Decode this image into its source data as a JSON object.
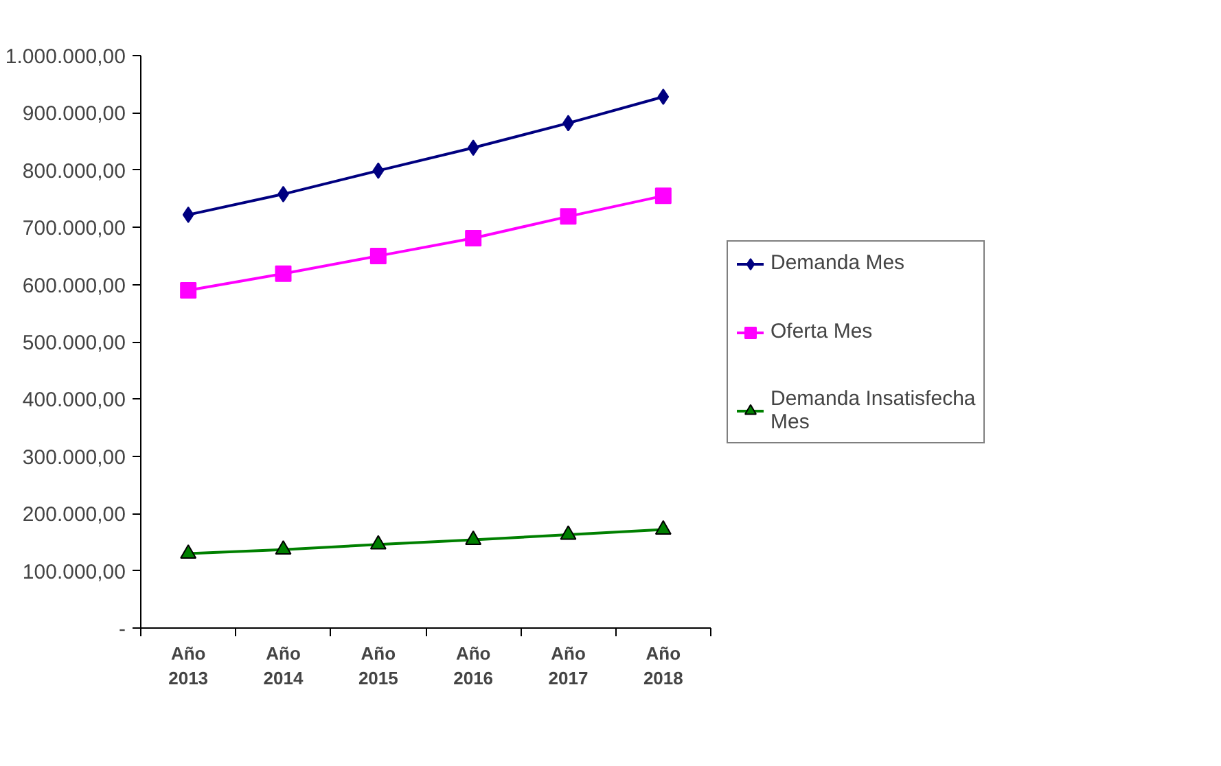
{
  "chart_data": {
    "type": "line",
    "categories": [
      "Año\n2013",
      "Año\n2014",
      "Año\n2015",
      "Año\n2016",
      "Año\n2017",
      "Año\n2018"
    ],
    "series": [
      {
        "name": "Demanda Mes",
        "color": "#000080",
        "marker": "diamond",
        "values": [
          722000,
          758000,
          799000,
          839000,
          882000,
          928000
        ]
      },
      {
        "name": "Oferta Mes",
        "color": "#ff00ff",
        "marker": "square",
        "values": [
          590000,
          619000,
          650000,
          681000,
          719000,
          755000
        ]
      },
      {
        "name": "Demanda Insatisfecha\nMes",
        "color": "#008000",
        "marker": "triangle",
        "values": [
          130000,
          137000,
          146000,
          154000,
          163000,
          172000
        ]
      }
    ],
    "ylim": [
      0,
      1000000
    ],
    "yticks": [
      {
        "value": 0,
        "label": "-"
      },
      {
        "value": 100000,
        "label": "100.000,00"
      },
      {
        "value": 200000,
        "label": "200.000,00"
      },
      {
        "value": 300000,
        "label": "300.000,00"
      },
      {
        "value": 400000,
        "label": "400.000,00"
      },
      {
        "value": 500000,
        "label": "500.000,00"
      },
      {
        "value": 600000,
        "label": "600.000,00"
      },
      {
        "value": 700000,
        "label": "700.000,00"
      },
      {
        "value": 800000,
        "label": "800.000,00"
      },
      {
        "value": 900000,
        "label": "900.000,00"
      },
      {
        "value": 1000000,
        "label": "1.000.000,00"
      }
    ],
    "grid": false,
    "legend": "right",
    "line_style": "solid"
  }
}
